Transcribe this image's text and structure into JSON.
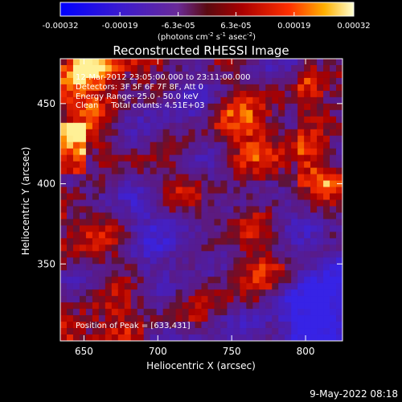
{
  "chart_data": {
    "type": "heatmap",
    "title": "Reconstructed RHESSI Image",
    "xlabel": "Heliocentric X (arcsec)",
    "ylabel": "Heliocentric Y (arcsec)",
    "xlim": [
      634,
      825
    ],
    "ylim": [
      302,
      478
    ],
    "x_ticks": [
      650,
      700,
      750,
      800
    ],
    "y_ticks": [
      350,
      400,
      450
    ],
    "colorbar": {
      "units_label": "(photons cm",
      "units_exp1": "-2",
      "units_mid": " s",
      "units_exp2": "-1",
      "units_mid2": " asec",
      "units_exp3": "-2",
      "units_close": ")",
      "range": [
        -0.00032,
        0.00032
      ],
      "tick_values": [
        -0.00032,
        -0.00019,
        -6.3e-05,
        6.3e-05,
        0.00019,
        0.00032
      ],
      "tick_labels": [
        "-0.00032",
        "-0.00019",
        "-6.3e-05",
        "6.3e-05",
        "0.00019",
        "0.00032"
      ]
    },
    "annotations": [
      "12-Mar-2012 23:05:00.000 to 23:11:00.000",
      "Detectors: 3F 5F 6F 7F 8F, Att 0",
      "Energy Range: 25.0 - 50.0 keV",
      "Clean     Total counts: 4.51E+03"
    ],
    "peak_label": "Position of Peak = [633,431]",
    "peak_position": [
      633,
      431
    ],
    "grid": false
  },
  "footer": {
    "timestamp": "9-May-2022 08:18"
  }
}
